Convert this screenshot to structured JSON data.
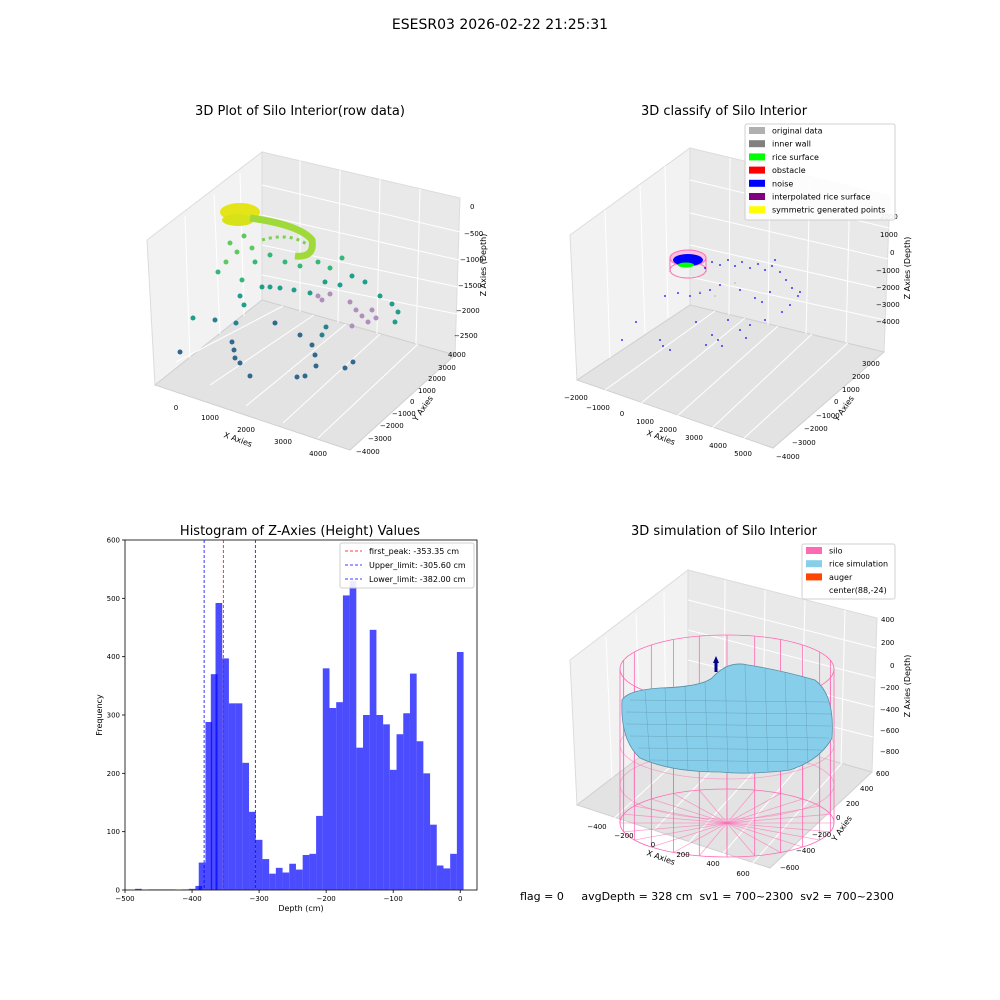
{
  "figure": {
    "suptitle": "ESESR03 2026-02-22 21:25:31",
    "footer": "flag = 0     avgDepth = 328 cm  sv1 = 700~2300  sv2 = 700~2300"
  },
  "panels": {
    "raw": {
      "title": "3D Plot of Silo Interior(row data)",
      "xlabel": "X Axies",
      "ylabel": "Y Axies",
      "zlabel": "Z Axies (Depth)",
      "xticks": [
        "0",
        "1000",
        "2000",
        "3000",
        "4000"
      ],
      "yticks": [
        "4000",
        "3000",
        "2000",
        "1000",
        "0",
        "−1000",
        "−2000",
        "−3000",
        "−4000"
      ],
      "zticks": [
        "0",
        "−500",
        "−1000",
        "−1500",
        "−2000",
        "−2500"
      ]
    },
    "classify": {
      "title": "3D classify of Silo Interior",
      "xlabel": "X Axies",
      "ylabel": "Y Axies",
      "zlabel": "Z Axies (Depth)",
      "xticks": [
        "−2000",
        "−1000",
        "0",
        "1000",
        "2000",
        "3000",
        "4000",
        "5000"
      ],
      "yticks": [
        "3000",
        "2000",
        "1000",
        "0",
        "−1000",
        "−2000",
        "−3000",
        "−4000"
      ],
      "zticks": [
        "2000",
        "1000",
        "0",
        "−1000",
        "−2000",
        "−3000",
        "−4000"
      ],
      "legend": [
        {
          "label": "original data",
          "color": "#b0b0b0"
        },
        {
          "label": "inner wall",
          "color": "#808080"
        },
        {
          "label": "rice surface",
          "color": "#00ff00"
        },
        {
          "label": "obstacle",
          "color": "#ff0000"
        },
        {
          "label": "noise",
          "color": "#0000ff"
        },
        {
          "label": "interpolated rice surface",
          "color": "#800080"
        },
        {
          "label": "symmetric generated points",
          "color": "#ffff00"
        }
      ]
    },
    "simulation": {
      "title": "3D simulation of Silo Interior",
      "xlabel": "X Axies",
      "ylabel": "Y Axies",
      "zlabel": "Z Axies (Depth)",
      "xticks": [
        "−400",
        "−200",
        "0",
        "200",
        "400",
        "600"
      ],
      "yticks": [
        "600",
        "400",
        "200",
        "0",
        "−200",
        "−400",
        "−600"
      ],
      "zticks": [
        "400",
        "200",
        "0",
        "−200",
        "−400",
        "−600",
        "−800"
      ],
      "legend": [
        {
          "label": "silo",
          "color": "#ff69b4"
        },
        {
          "label": "rice simulation",
          "color": "#87ceeb"
        },
        {
          "label": "auger",
          "color": "#ff4500"
        },
        {
          "label": "center(88,-24)",
          "color": ""
        }
      ]
    }
  },
  "chart_data": {
    "type": "bar",
    "title": "Histogram of Z-Axies (Height) Values",
    "xlabel": "Depth (cm)",
    "ylabel": "Frequency",
    "xlim": [
      -500,
      25
    ],
    "ylim": [
      0,
      600
    ],
    "xticks": [
      -500,
      -400,
      -300,
      -200,
      -100,
      0
    ],
    "yticks": [
      0,
      100,
      200,
      300,
      400,
      500,
      600
    ],
    "bar_color": "#0000ff",
    "bin_width": 10,
    "bins": [
      {
        "x": -480,
        "v": 2
      },
      {
        "x": -460,
        "v": 1
      },
      {
        "x": -450,
        "v": 1
      },
      {
        "x": -440,
        "v": 1
      },
      {
        "x": -430,
        "v": 1
      },
      {
        "x": -410,
        "v": 1
      },
      {
        "x": -400,
        "v": 2
      },
      {
        "x": -390,
        "v": 7
      },
      {
        "x": -385,
        "v": 47
      },
      {
        "x": -375,
        "v": 288
      },
      {
        "x": -367,
        "v": 370
      },
      {
        "x": -360,
        "v": 492
      },
      {
        "x": -350,
        "v": 397
      },
      {
        "x": -340,
        "v": 320
      },
      {
        "x": -330,
        "v": 320
      },
      {
        "x": -320,
        "v": 218
      },
      {
        "x": -310,
        "v": 134
      },
      {
        "x": -300,
        "v": 86
      },
      {
        "x": -290,
        "v": 53
      },
      {
        "x": -280,
        "v": 28
      },
      {
        "x": -270,
        "v": 38
      },
      {
        "x": -260,
        "v": 30
      },
      {
        "x": -250,
        "v": 45
      },
      {
        "x": -240,
        "v": 35
      },
      {
        "x": -230,
        "v": 60
      },
      {
        "x": -220,
        "v": 62
      },
      {
        "x": -210,
        "v": 127
      },
      {
        "x": -200,
        "v": 380
      },
      {
        "x": -190,
        "v": 312
      },
      {
        "x": -180,
        "v": 322
      },
      {
        "x": -170,
        "v": 505
      },
      {
        "x": -160,
        "v": 530
      },
      {
        "x": -150,
        "v": 244
      },
      {
        "x": -140,
        "v": 300
      },
      {
        "x": -130,
        "v": 446
      },
      {
        "x": -120,
        "v": 300
      },
      {
        "x": -110,
        "v": 284
      },
      {
        "x": -100,
        "v": 206
      },
      {
        "x": -90,
        "v": 267
      },
      {
        "x": -80,
        "v": 303
      },
      {
        "x": -70,
        "v": 371
      },
      {
        "x": -60,
        "v": 255
      },
      {
        "x": -50,
        "v": 200
      },
      {
        "x": -40,
        "v": 112
      },
      {
        "x": -30,
        "v": 42
      },
      {
        "x": -20,
        "v": 37
      },
      {
        "x": -10,
        "v": 62
      },
      {
        "x": 0,
        "v": 408
      }
    ],
    "vlines": [
      {
        "label": "first_peak: -353.35 cm",
        "x": -353.35,
        "color": "#ff0000"
      },
      {
        "label": "Upper_limit: -305.60 cm",
        "x": -305.6,
        "color": "#0000ff"
      },
      {
        "label": "Lower_limit: -382.00 cm",
        "x": -382.0,
        "color": "#0000ff"
      }
    ]
  }
}
